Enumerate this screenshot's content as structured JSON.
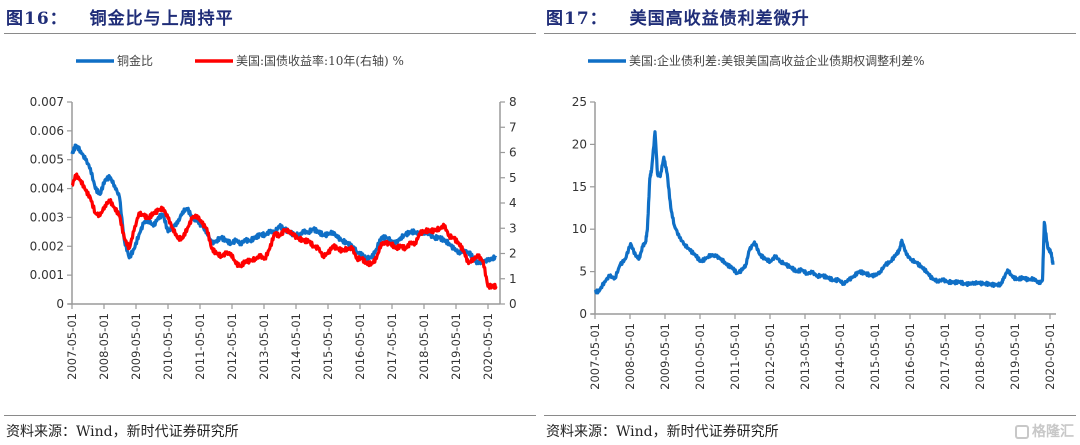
{
  "left_panel": {
    "figure_number": "图16：",
    "figure_title": "铜金比与上周持平",
    "source": "资料来源：Wind，新时代证券研究所"
  },
  "right_panel": {
    "figure_number": "图17：",
    "figure_title": "美国高收益债利差微升",
    "source": "资料来源：Wind，新时代证券研究所",
    "watermark": "格隆汇"
  },
  "colors": {
    "blue": "#0f6fc6",
    "red": "#ff0000",
    "axis": "#9a9a9a",
    "title": "#1f2d78"
  },
  "chart_data": [
    {
      "type": "line",
      "title": "铜金比与上周持平",
      "xlabel": "",
      "ylabel": "",
      "y2label": "",
      "categories": [
        "2007-05-01",
        "2008-05-01",
        "2009-05-01",
        "2010-05-01",
        "2011-05-01",
        "2012-05-01",
        "2013-05-01",
        "2014-05-01",
        "2015-05-01",
        "2016-05-01",
        "2017-05-01",
        "2018-05-01",
        "2019-05-01",
        "2020-05-01"
      ],
      "x_start": 2007.33,
      "x_end": 2020.45,
      "ylim": [
        0,
        0.007
      ],
      "yticks": [
        "0",
        "0.001",
        "0.002",
        "0.003",
        "0.004",
        "0.005",
        "0.006",
        "0.007"
      ],
      "y2lim": [
        0,
        8
      ],
      "y2ticks": [
        "0",
        "1",
        "2",
        "3",
        "4",
        "5",
        "6",
        "7",
        "8"
      ],
      "grid": false,
      "legend_position": "top",
      "series": [
        {
          "name": "铜金比",
          "axis": "left",
          "color": "#0f6fc6",
          "x": [
            2007.33,
            2007.45,
            2007.6,
            2007.75,
            2007.9,
            2008.05,
            2008.2,
            2008.35,
            2008.5,
            2008.65,
            2008.8,
            2008.95,
            2009.1,
            2009.25,
            2009.4,
            2009.55,
            2009.7,
            2009.85,
            2010.0,
            2010.15,
            2010.3,
            2010.45,
            2010.6,
            2010.75,
            2010.9,
            2011.05,
            2011.2,
            2011.35,
            2011.5,
            2011.65,
            2011.8,
            2011.95,
            2012.1,
            2012.25,
            2012.4,
            2012.55,
            2012.7,
            2012.85,
            2013.0,
            2013.15,
            2013.3,
            2013.45,
            2013.6,
            2013.75,
            2013.9,
            2014.05,
            2014.2,
            2014.35,
            2014.5,
            2014.65,
            2014.8,
            2014.95,
            2015.1,
            2015.25,
            2015.4,
            2015.55,
            2015.7,
            2015.85,
            2016.0,
            2016.15,
            2016.3,
            2016.45,
            2016.6,
            2016.75,
            2016.9,
            2017.05,
            2017.2,
            2017.35,
            2017.5,
            2017.65,
            2017.8,
            2017.95,
            2018.1,
            2018.25,
            2018.4,
            2018.55,
            2018.7,
            2018.85,
            2019.0,
            2019.15,
            2019.3,
            2019.45,
            2019.6,
            2019.75,
            2019.9,
            2020.05,
            2020.2,
            2020.35,
            2020.45
          ],
          "values": [
            0.0052,
            0.0055,
            0.0053,
            0.005,
            0.0047,
            0.004,
            0.0038,
            0.0043,
            0.0044,
            0.0041,
            0.0037,
            0.0022,
            0.0016,
            0.0019,
            0.0024,
            0.0028,
            0.0029,
            0.0027,
            0.003,
            0.0031,
            0.0025,
            0.0027,
            0.0028,
            0.0032,
            0.0033,
            0.003,
            0.0029,
            0.0027,
            0.0025,
            0.0021,
            0.0022,
            0.0023,
            0.0022,
            0.0021,
            0.0022,
            0.0021,
            0.0022,
            0.0022,
            0.0023,
            0.0024,
            0.0024,
            0.0025,
            0.0025,
            0.0027,
            0.0026,
            0.0025,
            0.0024,
            0.0024,
            0.0025,
            0.0025,
            0.0026,
            0.0025,
            0.0024,
            0.0024,
            0.0025,
            0.0023,
            0.0022,
            0.0021,
            0.002,
            0.0018,
            0.0017,
            0.0016,
            0.0016,
            0.0019,
            0.0023,
            0.0023,
            0.0022,
            0.0021,
            0.0023,
            0.0024,
            0.0025,
            0.0025,
            0.0024,
            0.0025,
            0.0024,
            0.0023,
            0.0023,
            0.0022,
            0.0021,
            0.0019,
            0.0018,
            0.0018,
            0.0018,
            0.0016,
            0.0014,
            0.0015,
            0.0015,
            0.0016,
            0.0016
          ]
        },
        {
          "name": "美国:国债收益率:10年(右轴) %",
          "axis": "right",
          "color": "#ff0000",
          "x": [
            2007.33,
            2007.45,
            2007.6,
            2007.75,
            2007.9,
            2008.05,
            2008.2,
            2008.35,
            2008.5,
            2008.65,
            2008.8,
            2008.95,
            2009.1,
            2009.25,
            2009.4,
            2009.55,
            2009.7,
            2009.85,
            2010.0,
            2010.15,
            2010.3,
            2010.45,
            2010.6,
            2010.75,
            2010.9,
            2011.05,
            2011.2,
            2011.35,
            2011.5,
            2011.65,
            2011.8,
            2011.95,
            2012.1,
            2012.25,
            2012.4,
            2012.55,
            2012.7,
            2012.85,
            2013.0,
            2013.15,
            2013.3,
            2013.45,
            2013.6,
            2013.75,
            2013.9,
            2014.05,
            2014.2,
            2014.35,
            2014.5,
            2014.65,
            2014.8,
            2014.95,
            2015.1,
            2015.25,
            2015.4,
            2015.55,
            2015.7,
            2015.85,
            2016.0,
            2016.15,
            2016.3,
            2016.45,
            2016.6,
            2016.75,
            2016.9,
            2017.05,
            2017.2,
            2017.35,
            2017.5,
            2017.65,
            2017.8,
            2017.95,
            2018.1,
            2018.25,
            2018.4,
            2018.55,
            2018.7,
            2018.85,
            2019.0,
            2019.15,
            2019.3,
            2019.45,
            2019.6,
            2019.75,
            2019.9,
            2020.05,
            2020.2,
            2020.35,
            2020.45
          ],
          "values": [
            4.7,
            5.1,
            4.9,
            4.5,
            4.2,
            3.6,
            3.5,
            3.9,
            4.1,
            3.8,
            3.5,
            2.6,
            2.2,
            2.9,
            3.6,
            3.5,
            3.4,
            3.6,
            3.7,
            3.8,
            3.4,
            3.0,
            2.6,
            2.6,
            3.0,
            3.4,
            3.5,
            3.2,
            3.0,
            2.2,
            2.0,
            1.9,
            2.0,
            2.0,
            1.6,
            1.5,
            1.7,
            1.7,
            1.8,
            1.9,
            1.8,
            2.2,
            2.8,
            2.7,
            2.9,
            2.9,
            2.7,
            2.6,
            2.5,
            2.5,
            2.3,
            2.2,
            1.9,
            2.0,
            2.3,
            2.2,
            2.1,
            2.2,
            2.2,
            1.8,
            1.8,
            1.6,
            1.6,
            1.8,
            2.4,
            2.4,
            2.4,
            2.2,
            2.3,
            2.2,
            2.4,
            2.4,
            2.8,
            2.9,
            2.9,
            2.9,
            3.0,
            3.1,
            2.7,
            2.6,
            2.4,
            2.1,
            1.6,
            1.8,
            1.9,
            1.7,
            0.7,
            0.7,
            0.7
          ]
        }
      ]
    },
    {
      "type": "line",
      "title": "美国高收益债利差微升",
      "xlabel": "",
      "ylabel": "",
      "categories": [
        "2007-05-01",
        "2008-05-01",
        "2009-05-01",
        "2010-05-01",
        "2011-05-01",
        "2012-05-01",
        "2013-05-01",
        "2014-05-01",
        "2015-05-01",
        "2016-05-01",
        "2017-05-01",
        "2018-05-01",
        "2019-05-01",
        "2020-05-01"
      ],
      "x_start": 2007.33,
      "x_end": 2020.45,
      "ylim": [
        0,
        25
      ],
      "yticks": [
        "0",
        "5",
        "10",
        "15",
        "20",
        "25"
      ],
      "grid": false,
      "legend_position": "top",
      "series": [
        {
          "name": "美国:企业债利差:美银美国高收益企业债期权调整利差%",
          "axis": "left",
          "color": "#0f6fc6",
          "x": [
            2007.33,
            2007.45,
            2007.6,
            2007.75,
            2007.9,
            2008.05,
            2008.2,
            2008.35,
            2008.5,
            2008.6,
            2008.7,
            2008.78,
            2008.83,
            2008.9,
            2008.95,
            2009.05,
            2009.12,
            2009.2,
            2009.3,
            2009.4,
            2009.5,
            2009.6,
            2009.75,
            2009.9,
            2010.05,
            2010.2,
            2010.35,
            2010.5,
            2010.65,
            2010.8,
            2010.95,
            2011.1,
            2011.25,
            2011.4,
            2011.55,
            2011.65,
            2011.75,
            2011.9,
            2012.05,
            2012.2,
            2012.35,
            2012.5,
            2012.65,
            2012.8,
            2012.95,
            2013.1,
            2013.25,
            2013.4,
            2013.55,
            2013.7,
            2013.85,
            2014.0,
            2014.15,
            2014.3,
            2014.45,
            2014.6,
            2014.75,
            2014.9,
            2015.05,
            2015.2,
            2015.35,
            2015.5,
            2015.65,
            2015.8,
            2015.95,
            2016.05,
            2016.12,
            2016.25,
            2016.4,
            2016.55,
            2016.7,
            2016.85,
            2017.0,
            2017.15,
            2017.3,
            2017.45,
            2017.6,
            2017.75,
            2017.9,
            2018.05,
            2018.2,
            2018.35,
            2018.5,
            2018.65,
            2018.8,
            2018.95,
            2019.02,
            2019.15,
            2019.3,
            2019.45,
            2019.6,
            2019.75,
            2019.9,
            2020.05,
            2020.15,
            2020.2,
            2020.3,
            2020.4,
            2020.45
          ],
          "values": [
            2.6,
            2.7,
            3.8,
            4.5,
            4.2,
            5.8,
            6.5,
            8.3,
            6.8,
            6.6,
            8.0,
            8.5,
            10.0,
            16.0,
            17.0,
            21.5,
            16.5,
            16.2,
            18.5,
            16.5,
            12.5,
            10.5,
            9.0,
            8.2,
            7.5,
            7.0,
            6.2,
            6.5,
            7.0,
            6.8,
            6.5,
            5.8,
            5.5,
            4.8,
            5.2,
            5.8,
            7.5,
            8.5,
            7.0,
            6.5,
            6.2,
            6.8,
            6.2,
            5.8,
            5.5,
            5.0,
            5.2,
            4.8,
            4.9,
            4.5,
            4.5,
            4.3,
            4.0,
            4.0,
            3.6,
            4.0,
            4.5,
            5.0,
            4.8,
            4.6,
            4.5,
            5.0,
            5.8,
            6.2,
            7.0,
            7.5,
            8.7,
            7.0,
            6.4,
            6.0,
            5.5,
            4.9,
            4.1,
            3.9,
            4.0,
            3.8,
            3.7,
            3.8,
            3.6,
            3.5,
            3.7,
            3.6,
            3.6,
            3.5,
            3.4,
            3.5,
            4.0,
            5.2,
            4.3,
            4.1,
            4.3,
            4.0,
            4.2,
            3.6,
            4.0,
            10.8,
            7.8,
            7.2,
            5.8
          ]
        }
      ]
    }
  ]
}
